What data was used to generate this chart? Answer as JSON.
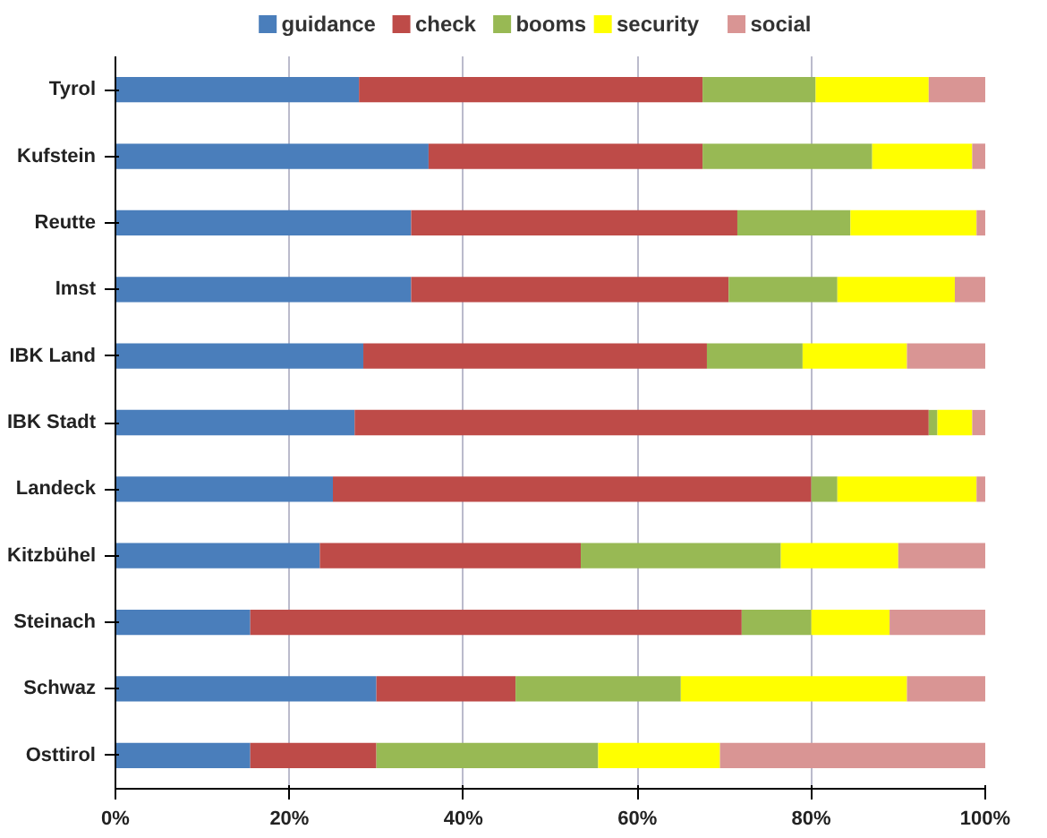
{
  "chart_data": {
    "type": "bar",
    "orientation": "horizontal",
    "stacked": true,
    "legend": "top",
    "grid": "x",
    "categories": [
      "Tyrol",
      "Kufstein",
      "Reutte",
      "Imst",
      "IBK Land",
      "IBK Stadt",
      "Landeck",
      "Kitzbühel",
      "Steinach",
      "Schwaz",
      "Osttirol"
    ],
    "xlim": [
      0,
      100
    ],
    "xticks": [
      {
        "value": 0,
        "label": "0%"
      },
      {
        "value": 20,
        "label": "20%"
      },
      {
        "value": 40,
        "label": "40%"
      },
      {
        "value": 60,
        "label": "60%"
      },
      {
        "value": 80,
        "label": "80%"
      },
      {
        "value": 100,
        "label": "100%"
      }
    ],
    "series": [
      {
        "name": "guidance",
        "color": "#4a7ebb",
        "values": [
          28,
          36,
          34,
          34,
          28.5,
          27.5,
          25,
          23.5,
          15.5,
          30,
          15.5
        ]
      },
      {
        "name": "check",
        "color": "#be4b48",
        "values": [
          39.5,
          31.5,
          37.5,
          36.5,
          39.5,
          66,
          55,
          30,
          56.5,
          16,
          14.5
        ]
      },
      {
        "name": "booms",
        "color": "#98b954",
        "values": [
          13,
          19.5,
          13,
          12.5,
          11,
          1,
          3,
          23,
          8,
          19,
          25.5
        ]
      },
      {
        "name": "security",
        "color": "#ffff00",
        "values": [
          13,
          11.5,
          14.5,
          13.5,
          12,
          4,
          16,
          13.5,
          9,
          26,
          14
        ]
      },
      {
        "name": "social",
        "color": "#d99594",
        "values": [
          6.5,
          1.5,
          1,
          3.5,
          9,
          1.5,
          1,
          10,
          11,
          9,
          30.5
        ]
      }
    ]
  }
}
